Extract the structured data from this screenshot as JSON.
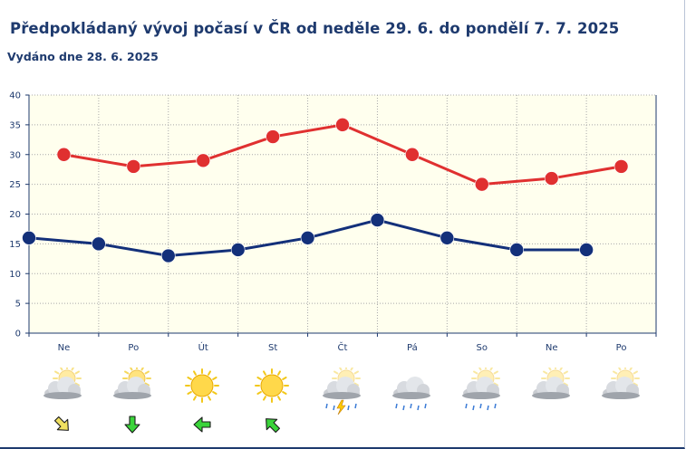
{
  "header": {
    "title": "Předpokládaný vývoj počasí v ČR od neděle 29. 6. do pondělí 7. 7. 2025",
    "issued": "Vydáno dne 28. 6. 2025"
  },
  "chart_data": {
    "type": "line",
    "categories": [
      "Ne",
      "Po",
      "Út",
      "St",
      "Čt",
      "Pá",
      "So",
      "Ne",
      "Po"
    ],
    "ylim": [
      0,
      40
    ],
    "yticks": [
      0,
      5,
      10,
      15,
      20,
      25,
      30,
      35,
      40
    ],
    "grid": true,
    "series": [
      {
        "key": "max",
        "color": "#e03030",
        "x": [
          0.5,
          1.5,
          2.5,
          3.5,
          4.5,
          5.5,
          6.5,
          7.5,
          8.5
        ],
        "values": [
          30,
          28,
          29,
          33,
          35,
          30,
          25,
          26,
          28
        ]
      },
      {
        "key": "min",
        "color": "#13307a",
        "x": [
          0,
          1,
          2,
          3,
          4,
          5,
          6,
          7,
          8
        ],
        "values": [
          16,
          15,
          13,
          14,
          16,
          19,
          16,
          14,
          14
        ]
      }
    ]
  },
  "forecast_icons": [
    {
      "icon": "sun-behind-cloud-icon",
      "sun": 0.5,
      "cloud": true,
      "precip": ""
    },
    {
      "icon": "sun-behind-cloud-icon",
      "sun": 0.7,
      "cloud": true,
      "precip": ""
    },
    {
      "icon": "sun-icon",
      "sun": 1,
      "cloud": false,
      "precip": ""
    },
    {
      "icon": "sun-icon",
      "sun": 1,
      "cloud": false,
      "precip": ""
    },
    {
      "icon": "thunderstorm-icon",
      "sun": 0.4,
      "cloud": true,
      "precip": "storm"
    },
    {
      "icon": "rain-cloud-icon",
      "sun": 0,
      "cloud": true,
      "precip": "rain"
    },
    {
      "icon": "sun-cloud-rain-icon",
      "sun": 0.4,
      "cloud": true,
      "precip": "rain"
    },
    {
      "icon": "sun-behind-cloud-icon",
      "sun": 0.4,
      "cloud": true,
      "precip": ""
    },
    {
      "icon": "sun-behind-cloud-icon",
      "sun": 0.4,
      "cloud": true,
      "precip": ""
    }
  ],
  "wind_arrows": [
    {
      "icon": "wind-arrow-southeast-icon",
      "rotation": 135,
      "color": "#f0e060"
    },
    {
      "icon": "wind-arrow-south-icon",
      "rotation": 180,
      "color": "#3ad43a"
    },
    {
      "icon": "wind-arrow-west-icon",
      "rotation": 270,
      "color": "#3ad43a"
    },
    {
      "icon": "wind-arrow-northwest-icon",
      "rotation": 315,
      "color": "#3ad43a"
    }
  ]
}
